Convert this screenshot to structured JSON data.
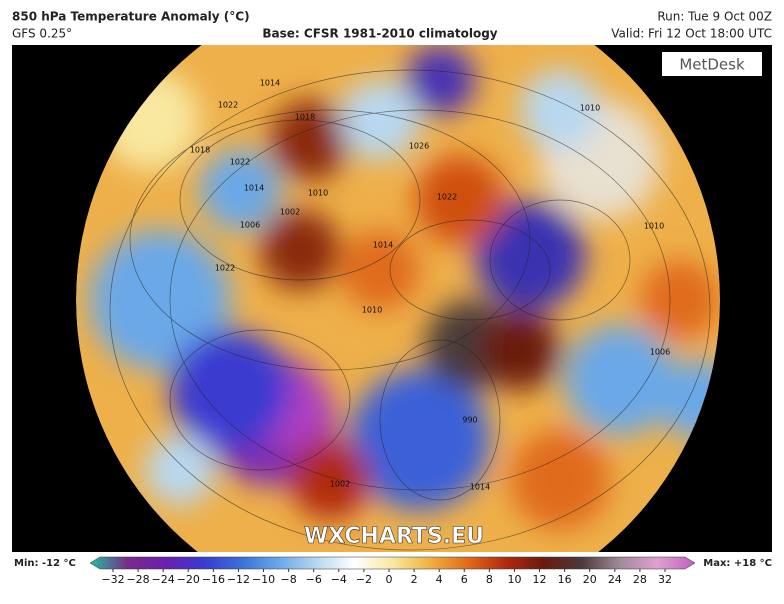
{
  "header": {
    "title": "850 hPa Temperature Anomaly (°C)",
    "model": "GFS 0.25°",
    "base": "Base: CFSR 1981-2010 climatology",
    "run": "Run: Tue 9 Oct 00Z",
    "valid": "Valid: Fri 12 Oct 18:00 UTC"
  },
  "map": {
    "logo": "MetDesk",
    "watermark": "WXCHARTS.EU",
    "isobar_labels": [
      1014,
      1022,
      1018,
      1026,
      1010,
      1018,
      1022,
      1014,
      1010,
      1002,
      1006,
      1022,
      1014,
      1010,
      1022,
      1010,
      1006,
      990,
      1014,
      1002
    ]
  },
  "colorbar": {
    "min_label": "Min: -12 °C",
    "max_label": "Max: +18 °C",
    "colors": [
      "#1fbf9f",
      "#7a2a8a",
      "#6a1fb0",
      "#3a3ad0",
      "#3a70d8",
      "#6aa8e8",
      "#b8d8f0",
      "#ffffff",
      "#f8e8a0",
      "#f0b040",
      "#e06a1a",
      "#b02a10",
      "#6a1a10",
      "#4a3a3a",
      "#a08a9a",
      "#e0a0d0",
      "#c060c0"
    ],
    "ticks": [
      {
        "value": -32,
        "label": "−32"
      },
      {
        "value": -28,
        "label": "−28"
      },
      {
        "value": -24,
        "label": "−24"
      },
      {
        "value": -20,
        "label": "−20"
      },
      {
        "value": -16,
        "label": "−16"
      },
      {
        "value": -12,
        "label": "−12"
      },
      {
        "value": -10,
        "label": "−10"
      },
      {
        "value": -8,
        "label": "−8"
      },
      {
        "value": -6,
        "label": "−6"
      },
      {
        "value": -4,
        "label": "−4"
      },
      {
        "value": -2,
        "label": "−2"
      },
      0,
      2,
      4,
      6,
      8,
      10,
      12,
      16,
      20,
      24,
      28,
      32
    ]
  }
}
